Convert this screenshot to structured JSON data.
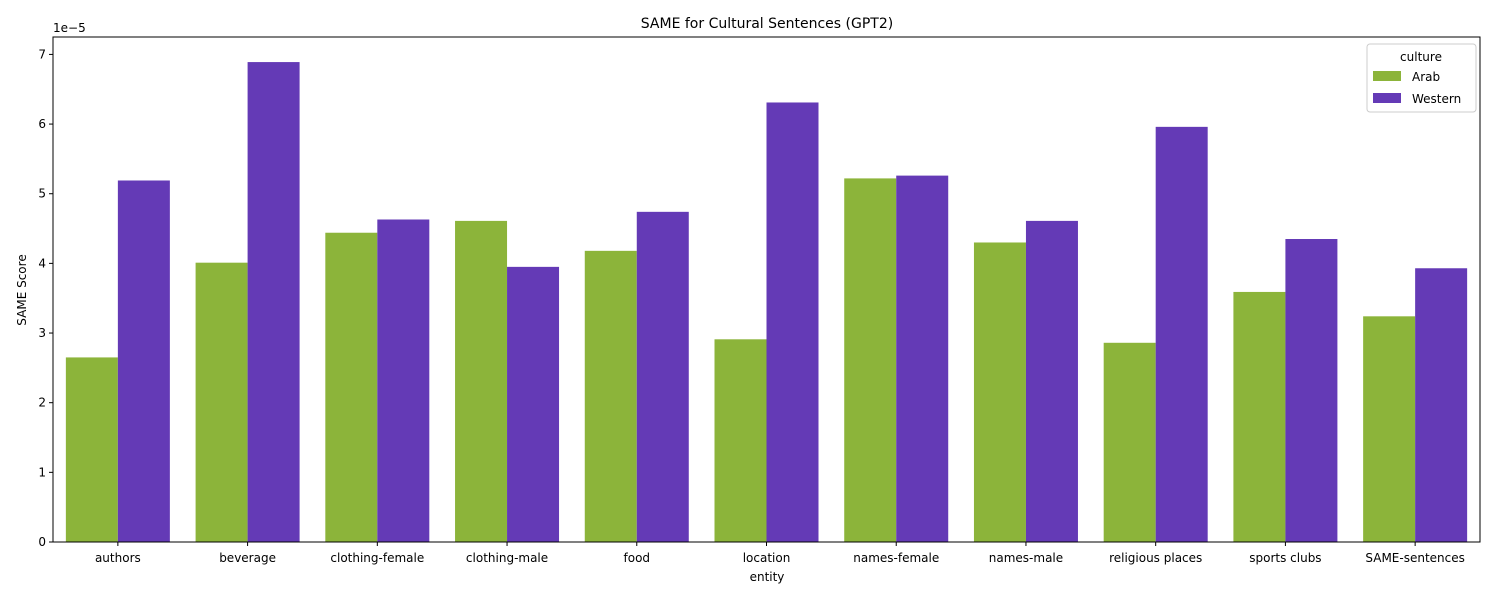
{
  "chart_data": {
    "type": "bar",
    "title": "SAME for Cultural Sentences (GPT2)",
    "xlabel": "entity",
    "ylabel": "SAME Score",
    "y_multiplier_label": "1e−5",
    "ylim": [
      0,
      7.25
    ],
    "yticks": [
      "0",
      "1",
      "2",
      "3",
      "4",
      "5",
      "6",
      "7"
    ],
    "categories": [
      "authors",
      "beverage",
      "clothing-female",
      "clothing-male",
      "food",
      "location",
      "names-female",
      "names-male",
      "religious places",
      "sports clubs",
      "SAME-sentences"
    ],
    "series": [
      {
        "name": "Arab",
        "color": "#8cb43a",
        "values": [
          2.65,
          4.01,
          4.44,
          4.61,
          4.18,
          2.91,
          5.22,
          4.3,
          2.86,
          3.59,
          3.24
        ]
      },
      {
        "name": "Western",
        "color": "#643ab6",
        "values": [
          5.19,
          6.89,
          4.63,
          3.95,
          4.74,
          6.31,
          5.26,
          4.61,
          5.96,
          4.35,
          3.93
        ]
      }
    ],
    "legend": {
      "title": "culture",
      "placement": "top-right"
    },
    "grid": false
  }
}
